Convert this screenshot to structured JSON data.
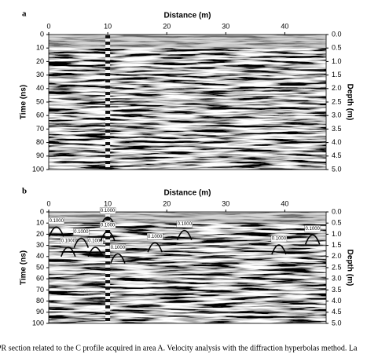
{
  "figure": {
    "caption": "PR section related to the C profile acquired in area A. Velocity analysis with the diffraction hyperbolas method. La"
  },
  "chart_data": [
    {
      "type": "image",
      "label": "a",
      "title": "Distance (m)",
      "ylabel": "Time (ns)",
      "y2label": "Depth (m)",
      "xlim": [
        0,
        47
      ],
      "xticks": [
        0,
        10,
        20,
        30,
        40
      ],
      "ylim": [
        0,
        100
      ],
      "yticks": [
        0,
        10,
        20,
        30,
        40,
        50,
        60,
        70,
        80,
        90,
        100
      ],
      "y2lim": [
        0,
        5
      ],
      "y2ticks": [
        {
          "value": 0,
          "label": "0.0"
        },
        0.5,
        {
          "value": 1,
          "label": "1.0"
        },
        1.5,
        {
          "value": 2,
          "label": "2.0"
        },
        2.5,
        {
          "value": 3,
          "label": "3.0"
        },
        3.5,
        {
          "value": 4,
          "label": "4.0"
        },
        4.5,
        {
          "value": 5,
          "label": "5.0"
        }
      ]
    },
    {
      "type": "image",
      "label": "b",
      "title": "Distance (m)",
      "ylabel": "Time (ns)",
      "y2label": "Depth (m)",
      "xlim": [
        0,
        47
      ],
      "xticks": [
        0,
        10,
        20,
        30,
        40
      ],
      "ylim": [
        0,
        100
      ],
      "yticks": [
        0,
        10,
        20,
        30,
        40,
        50,
        60,
        70,
        80,
        90,
        100
      ],
      "y2lim": [
        0,
        5
      ],
      "y2ticks": [
        {
          "value": 0,
          "label": "0.0"
        },
        0.5,
        {
          "value": 1,
          "label": "1.0"
        },
        1.5,
        {
          "value": 2,
          "label": "2.0"
        },
        2.5,
        {
          "value": 3,
          "label": "3.0"
        },
        3.5,
        {
          "value": 4,
          "label": "4.0"
        },
        4.5,
        {
          "value": 5,
          "label": "5.0"
        }
      ],
      "annotations": [
        {
          "x": 1.3,
          "t": 8,
          "label": "0.1000"
        },
        {
          "x": 3.3,
          "t": 26,
          "label": "0.1000"
        },
        {
          "x": 5.5,
          "t": 18,
          "label": "0.1000"
        },
        {
          "x": 7.9,
          "t": 26,
          "label": "0.1000"
        },
        {
          "x": 10,
          "t": -1,
          "label": "0.1000"
        },
        {
          "x": 10,
          "t": 12,
          "label": "0.1000"
        },
        {
          "x": 11.7,
          "t": 32,
          "label": "0.1000"
        },
        {
          "x": 18,
          "t": 22,
          "label": "0.1000"
        },
        {
          "x": 23,
          "t": 11,
          "label": "0.1000"
        },
        {
          "x": 39,
          "t": 24,
          "label": "0.1000"
        },
        {
          "x": 44.7,
          "t": 15,
          "label": "0.1000"
        }
      ]
    }
  ]
}
